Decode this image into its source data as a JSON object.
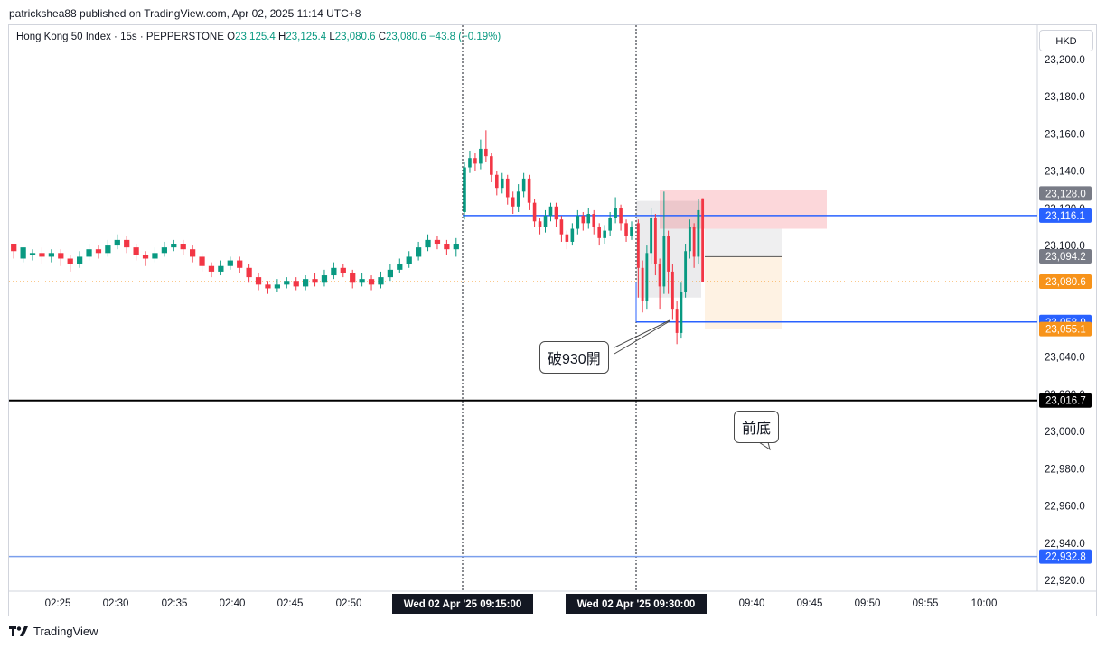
{
  "header": {
    "publish_line": "patrickshea88 published on TradingView.com, Apr 02, 2025 11:14 UTC+8"
  },
  "legend": {
    "symbol": "Hong Kong 50 Index · 15s · PEPPERSTONE",
    "o_label": "O",
    "o": "23,125.4",
    "h_label": "H",
    "h": "23,125.4",
    "l_label": "L",
    "l": "23,080.6",
    "c_label": "C",
    "c": "23,080.6",
    "change": "−43.8 (−0.19%)"
  },
  "currency": "HKD",
  "footer": {
    "brand": "TradingView"
  },
  "annotations": {
    "callout_1": "破930開",
    "callout_2": "前底"
  },
  "colors": {
    "up": "#089981",
    "down": "#f23645",
    "blue_line": "#2962ff",
    "light_blue_line": "#7b9fec",
    "black_line": "#000000",
    "price_orange": "#f7931a",
    "grey_badge": "#787b86"
  },
  "chart_data": {
    "type": "candlestick",
    "symbol": "Hong Kong 50 Index",
    "interval": "15s",
    "y_axis": {
      "ticks": [
        23200,
        23180,
        23160,
        23140,
        23120,
        23100,
        23040,
        23020,
        23000,
        22980,
        22960,
        22940,
        22920
      ],
      "tick_labels": [
        "23,200.0",
        "23,180.0",
        "23,160.0",
        "23,140.0",
        "23,120.0",
        "23,100.0",
        "23,040.0",
        "23,020.0",
        "23,000.0",
        "22,980.0",
        "22,960.0",
        "22,940.0",
        "22,920.0"
      ],
      "range": [
        22913,
        23212
      ]
    },
    "x_axis": {
      "ticks": [
        "02:25",
        "02:30",
        "02:35",
        "02:40",
        "02:45",
        "02:50",
        "09:40",
        "09:45",
        "09:50",
        "09:55",
        "10:00"
      ],
      "highlight_labels": [
        "Wed 02 Apr '25   09:15:00",
        "Wed 02 Apr '25   09:30:00"
      ]
    },
    "price_badges": [
      {
        "label": "23,128.0",
        "value": 23128.0,
        "color": "#787b86"
      },
      {
        "label": "23,116.1",
        "value": 23116.1,
        "color": "#2962ff"
      },
      {
        "label": "23,094.2",
        "value": 23094.2,
        "color": "#787b86"
      },
      {
        "label": "23,080.6",
        "value": 23080.6,
        "color": "#f7931a"
      },
      {
        "label": "23,058.9",
        "value": 23058.9,
        "color": "#2962ff"
      },
      {
        "label": "23,055.1",
        "value": 23055.1,
        "color": "#f7931a"
      },
      {
        "label": "23,016.7",
        "value": 23016.7,
        "color": "#000000"
      },
      {
        "label": "22,932.8",
        "value": 22932.8,
        "color": "#2962ff"
      }
    ],
    "horizontal_lines": [
      {
        "value": 23116.1,
        "style": "solid",
        "color": "#2962ff",
        "from_session": "09:15"
      },
      {
        "value": 23058.9,
        "style": "solid",
        "color": "#2962ff",
        "from_session": "09:30"
      },
      {
        "value": 23016.7,
        "style": "solid-thick",
        "color": "#000000",
        "from_session": "start"
      },
      {
        "value": 22932.8,
        "style": "solid",
        "color": "#7b9fec",
        "from_session": "start"
      },
      {
        "value": 23080.6,
        "style": "dotted",
        "color": "#f7931a",
        "from_session": "start"
      }
    ],
    "open_session_segment": [
      [
        23101,
        23097,
        23101,
        23093
      ],
      [
        23093,
        23099,
        23099,
        23091
      ],
      [
        23095,
        23096,
        23098,
        23092
      ],
      [
        23096,
        23094,
        23099,
        23090
      ],
      [
        23094,
        23096,
        23098,
        23091
      ],
      [
        23096,
        23093,
        23098,
        23089
      ],
      [
        23093,
        23090,
        23095,
        23086
      ],
      [
        23090,
        23094,
        23097,
        23088
      ],
      [
        23094,
        23098,
        23101,
        23092
      ],
      [
        23098,
        23096,
        23100,
        23093
      ],
      [
        23096,
        23100,
        23103,
        23094
      ],
      [
        23100,
        23103,
        23106,
        23098
      ],
      [
        23103,
        23099,
        23105,
        23096
      ],
      [
        23099,
        23095,
        23101,
        23092
      ],
      [
        23095,
        23093,
        23097,
        23089
      ],
      [
        23093,
        23096,
        23099,
        23091
      ],
      [
        23096,
        23099,
        23102,
        23094
      ],
      [
        23099,
        23101,
        23103,
        23097
      ],
      [
        23101,
        23098,
        23103,
        23095
      ],
      [
        23098,
        23094,
        23100,
        23091
      ],
      [
        23094,
        23089,
        23096,
        23086
      ],
      [
        23089,
        23086,
        23091,
        23083
      ],
      [
        23086,
        23089,
        23092,
        23084
      ],
      [
        23089,
        23092,
        23094,
        23087
      ],
      [
        23092,
        23088,
        23094,
        23085
      ],
      [
        23088,
        23083,
        23090,
        23080
      ],
      [
        23083,
        23079,
        23085,
        23076
      ],
      [
        23079,
        23077,
        23081,
        23074
      ],
      [
        23077,
        23079,
        23082,
        23075
      ],
      [
        23079,
        23081,
        23083,
        23077
      ],
      [
        23081,
        23078,
        23083,
        23076
      ],
      [
        23078,
        23082,
        23084,
        23076
      ],
      [
        23082,
        23080,
        23085,
        23078
      ],
      [
        23080,
        23084,
        23087,
        23078
      ],
      [
        23084,
        23088,
        23091,
        23082
      ],
      [
        23088,
        23085,
        23090,
        23083
      ],
      [
        23085,
        23080,
        23087,
        23077
      ],
      [
        23080,
        23082,
        23085,
        23078
      ],
      [
        23082,
        23079,
        23084,
        23076
      ],
      [
        23079,
        23083,
        23086,
        23077
      ],
      [
        23083,
        23087,
        23090,
        23081
      ],
      [
        23087,
        23090,
        23093,
        23085
      ],
      [
        23090,
        23094,
        23097,
        23088
      ],
      [
        23094,
        23099,
        23102,
        23092
      ],
      [
        23099,
        23103,
        23106,
        23097
      ],
      [
        23103,
        23101,
        23105,
        23098
      ],
      [
        23101,
        23098,
        23103,
        23095
      ],
      [
        23098,
        23101,
        23104,
        23094
      ]
    ],
    "session_0915_segment": [
      [
        23118,
        23142,
        23145,
        23114
      ],
      [
        23142,
        23147,
        23151,
        23139
      ],
      [
        23147,
        23144,
        23150,
        23140
      ],
      [
        23144,
        23152,
        23157,
        23141
      ],
      [
        23152,
        23148,
        23162,
        23145
      ],
      [
        23148,
        23138,
        23150,
        23134
      ],
      [
        23138,
        23131,
        23140,
        23127
      ],
      [
        23131,
        23136,
        23139,
        23128
      ],
      [
        23136,
        23126,
        23138,
        23122
      ],
      [
        23126,
        23121,
        23129,
        23117
      ],
      [
        23121,
        23129,
        23133,
        23118
      ],
      [
        23129,
        23136,
        23139,
        23126
      ],
      [
        23136,
        23123,
        23138,
        23119
      ],
      [
        23123,
        23113,
        23125,
        23110
      ],
      [
        23113,
        23110,
        23115,
        23106
      ],
      [
        23110,
        23116,
        23119,
        23107
      ],
      [
        23116,
        23121,
        23123,
        23113
      ],
      [
        23121,
        23114,
        23123,
        23110
      ],
      [
        23114,
        23106,
        23116,
        23102
      ],
      [
        23106,
        23102,
        23108,
        23098
      ],
      [
        23102,
        23109,
        23112,
        23100
      ],
      [
        23109,
        23116,
        23119,
        23106
      ],
      [
        23116,
        23112,
        23118,
        23108
      ],
      [
        23112,
        23117,
        23120,
        23109
      ],
      [
        23117,
        23110,
        23119,
        23106
      ],
      [
        23110,
        23104,
        23112,
        23100
      ],
      [
        23104,
        23108,
        23111,
        23101
      ],
      [
        23108,
        23115,
        23118,
        23105
      ],
      [
        23115,
        23120,
        23126,
        23112
      ],
      [
        23120,
        23112,
        23122,
        23108
      ],
      [
        23112,
        23105,
        23114,
        23102
      ],
      [
        23105,
        23110,
        23113,
        23103
      ]
    ],
    "session_0930_segment": [
      [
        23112,
        23088,
        23114,
        23072
      ],
      [
        23088,
        23070,
        23092,
        23064
      ],
      [
        23070,
        23096,
        23100,
        23066
      ],
      [
        23096,
        23115,
        23120,
        23090
      ],
      [
        23115,
        23090,
        23117,
        23084
      ],
      [
        23090,
        23078,
        23093,
        23066
      ],
      [
        23078,
        23105,
        23129,
        23074
      ],
      [
        23105,
        23086,
        23108,
        23074
      ],
      [
        23086,
        23066,
        23090,
        23060
      ],
      [
        23066,
        23053,
        23070,
        23047
      ],
      [
        23053,
        23075,
        23080,
        23050
      ],
      [
        23075,
        23097,
        23101,
        23072
      ],
      [
        23097,
        23110,
        23114,
        23093
      ],
      [
        23110,
        23094,
        23112,
        23088
      ],
      [
        23094,
        23119,
        23125,
        23090
      ],
      [
        23125.4,
        23080.6,
        23125.4,
        23080.6
      ]
    ]
  }
}
